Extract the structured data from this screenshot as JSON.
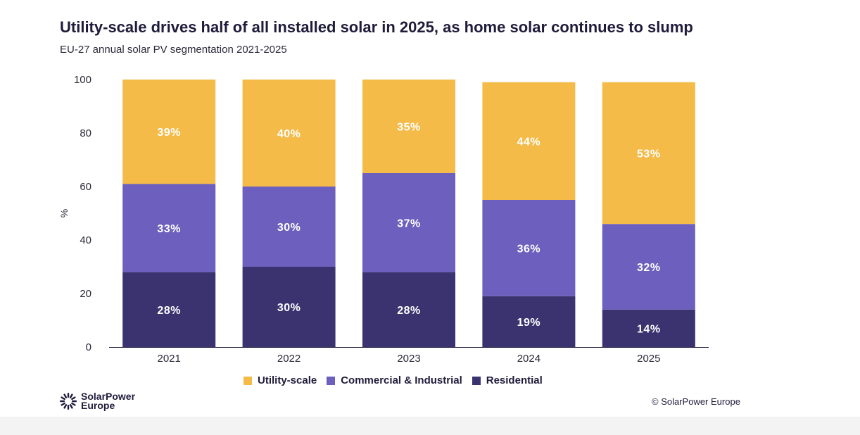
{
  "header": {
    "title": "Utility-scale drives half of all installed solar in 2025, as home solar continues to slump",
    "subtitle": "EU-27 annual solar PV segmentation 2021-2025"
  },
  "chart_data": {
    "type": "bar",
    "stacked": true,
    "categories": [
      "2021",
      "2022",
      "2023",
      "2024",
      "2025"
    ],
    "series": [
      {
        "name": "Residential",
        "color": "#3b3370",
        "values": [
          28,
          30,
          28,
          19,
          14
        ],
        "labels": [
          "28%",
          "30%",
          "28%",
          "19%",
          "14%"
        ]
      },
      {
        "name": "Commercial & Industrial",
        "color": "#6c5fbd",
        "values": [
          33,
          30,
          37,
          36,
          32
        ],
        "labels": [
          "33%",
          "30%",
          "37%",
          "36%",
          "32%"
        ]
      },
      {
        "name": "Utility-scale",
        "color": "#f4bb49",
        "values": [
          39,
          40,
          35,
          44,
          53
        ],
        "labels": [
          "39%",
          "40%",
          "35%",
          "44%",
          "53%"
        ]
      }
    ],
    "ylabel": "%",
    "xlabel": "",
    "ylim": [
      0,
      100
    ],
    "yticks": [
      "0",
      "20",
      "40",
      "60",
      "80",
      "100"
    ],
    "grid": false,
    "legend_position": "bottom-center"
  },
  "legend": {
    "items": [
      {
        "label": "Utility-scale",
        "color": "#f4bb49"
      },
      {
        "label": "Commercial & Industrial",
        "color": "#6c5fbd"
      },
      {
        "label": "Residential",
        "color": "#3b3370"
      }
    ]
  },
  "branding": {
    "logo_line1": "SolarPower",
    "logo_line2": "Europe",
    "logo_icon": "sun-burst-icon",
    "copyright": "© SolarPower Europe"
  }
}
